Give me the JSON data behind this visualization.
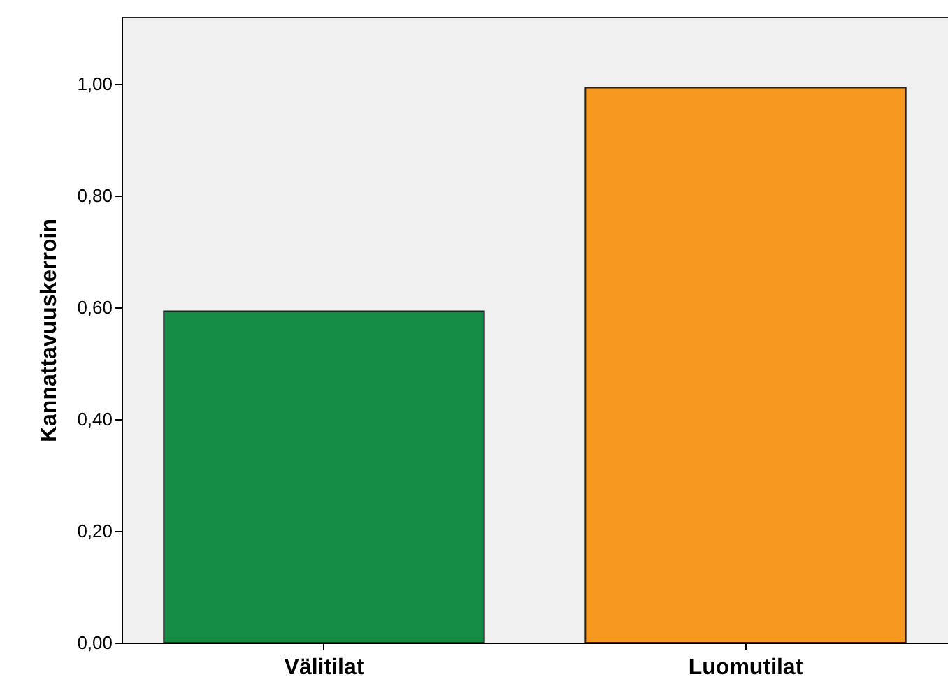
{
  "chart_data": {
    "type": "bar",
    "ylabel": "Kannattavuuskerroin",
    "categories": [
      "Välitilat",
      "Luomutilat"
    ],
    "values": [
      0.593,
      0.993
    ],
    "colors": [
      "#148c46",
      "#f7991f"
    ],
    "ylim": [
      0,
      1.12
    ],
    "yticks": [
      {
        "value": 0,
        "label": "0,00"
      },
      {
        "value": 0.2,
        "label": "0,20"
      },
      {
        "value": 0.4,
        "label": "0,40"
      },
      {
        "value": 0.6,
        "label": "0,60"
      },
      {
        "value": 0.8,
        "label": "0,80"
      },
      {
        "value": 1,
        "label": "1,00"
      }
    ],
    "grid": false
  }
}
